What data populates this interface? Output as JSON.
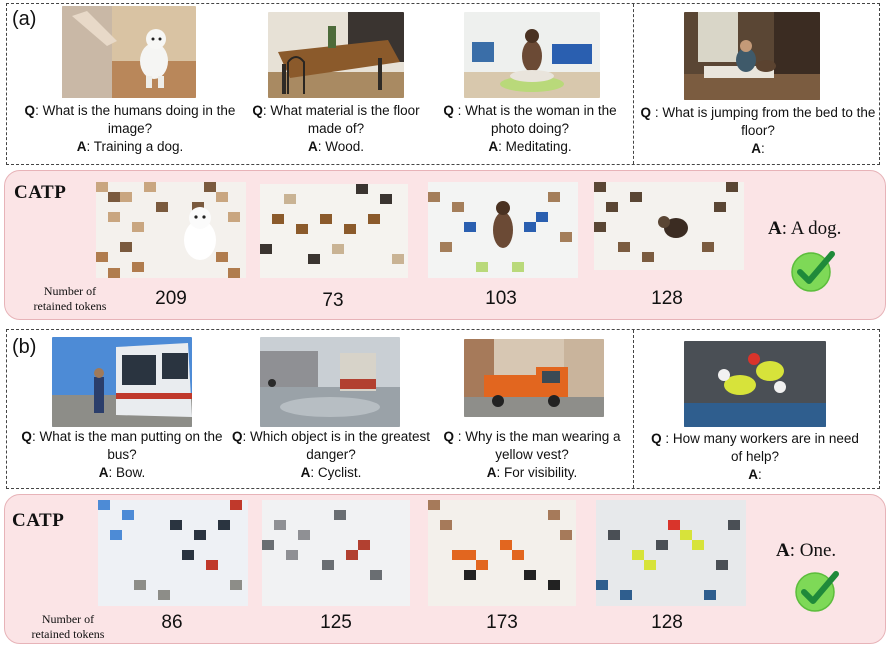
{
  "figure": {
    "panels": [
      {
        "label": "(a)",
        "examples": [
          {
            "q_prefix": "Q",
            "q_sep": ": ",
            "question": "What is the humans doing in the image?",
            "a_prefix": "A",
            "answer": ": Training a dog."
          },
          {
            "q_prefix": "Q",
            "q_sep": ": ",
            "question": "What material is the floor made of?",
            "a_prefix": "A",
            "answer": ": Wood."
          },
          {
            "q_prefix": "Q",
            "q_sep": " : ",
            "question": "What is the woman in the photo doing?",
            "a_prefix": "A",
            "answer": ": Meditating."
          },
          {
            "q_prefix": "Q",
            "q_sep": " : ",
            "question": "What is jumping from the bed to the floor?",
            "a_prefix": "A",
            "answer": ":"
          }
        ],
        "catp": {
          "title": "CATP",
          "tokens_label_line1": "Number of",
          "tokens_label_line2": "retained tokens",
          "counts": [
            "209",
            "73",
            "103",
            "128"
          ],
          "answer_prefix": "A",
          "answer_text": ": A dog."
        }
      },
      {
        "label": "(b)",
        "examples": [
          {
            "q_prefix": "Q",
            "q_sep": ": ",
            "question": "What is the man putting on the bus?",
            "a_prefix": "A",
            "answer": ": Bow."
          },
          {
            "q_prefix": "Q",
            "q_sep": ": ",
            "question": "Which object is in the greatest danger?",
            "a_prefix": "A",
            "answer": ": Cyclist."
          },
          {
            "q_prefix": "Q",
            "q_sep": " : ",
            "question": "Why is the man wearing a yellow vest?",
            "a_prefix": "A",
            "answer": ": For visibility."
          },
          {
            "q_prefix": "Q",
            "q_sep": " : ",
            "question": "How many workers are in need of help?",
            "a_prefix": "A",
            "answer": ":"
          }
        ],
        "catp": {
          "title": "CATP",
          "tokens_label_line1": "Number of",
          "tokens_label_line2": "retained tokens",
          "counts": [
            "86",
            "125",
            "173",
            "128"
          ],
          "answer_prefix": "A",
          "answer_text": ": One."
        }
      }
    ],
    "colors": {
      "catp_background": "#fbe4e6",
      "catp_border": "#e7b3b8",
      "check_fill": "#7ed957",
      "check_mark": "#1f8a3a"
    },
    "icons": [
      "check-icon"
    ]
  }
}
